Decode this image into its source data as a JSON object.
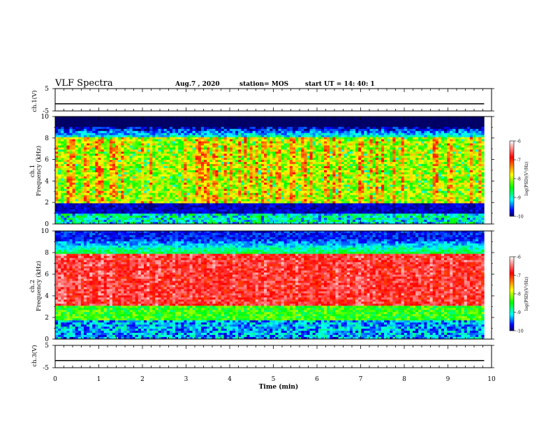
{
  "header": {
    "title": "VLF Spectra",
    "date": "Aug.7 , 2020",
    "station": "station= MOS",
    "start": "start UT = 14: 40: 1"
  },
  "chart_data": [
    {
      "type": "line",
      "name": "ch1-waveform",
      "ylabel": "ch.1(V)",
      "x": [
        0,
        9.83
      ],
      "y": [
        -1.8,
        -1.8
      ],
      "xlim": [
        0,
        10
      ],
      "ylim": [
        -5,
        5
      ],
      "yticks": [
        "5",
        "-5"
      ]
    },
    {
      "type": "heatmap",
      "name": "ch1-spectrogram",
      "ylabel": "ch.1\nFrequency (kHz)",
      "xlim": [
        0,
        10
      ],
      "ylim": [
        0,
        10
      ],
      "yticks": [
        "0",
        "2",
        "4",
        "6",
        "8",
        "10"
      ],
      "data_extent_x": [
        0,
        9.83
      ],
      "colorbar": {
        "label": "log(PSD)(V²/Hz)",
        "range": [
          -10,
          -6
        ],
        "ticks": [
          "-6",
          "-7",
          "-8",
          "-9",
          "-10"
        ]
      }
    },
    {
      "type": "heatmap",
      "name": "ch2-spectrogram",
      "ylabel": "ch.2\nFrequency (kHz)",
      "xlim": [
        0,
        10
      ],
      "ylim": [
        0,
        10
      ],
      "yticks": [
        "0",
        "2",
        "4",
        "6",
        "8",
        "10"
      ],
      "data_extent_x": [
        0,
        9.83
      ],
      "colorbar": {
        "label": "log(PSD)(V²/Hz)",
        "range": [
          -10,
          -6
        ],
        "ticks": [
          "-6",
          "-7",
          "-8",
          "-9",
          "-10"
        ]
      }
    },
    {
      "type": "line",
      "name": "ch3-waveform",
      "ylabel": "ch.3(V)",
      "x": [
        0,
        9.83
      ],
      "y": [
        -1.8,
        -1.8
      ],
      "xlim": [
        0,
        10
      ],
      "ylim": [
        -5,
        5
      ],
      "yticks": [
        "5",
        "-5"
      ]
    }
  ],
  "xaxis": {
    "label": "Time (min)",
    "ticks": [
      "0",
      "1",
      "2",
      "3",
      "4",
      "5",
      "6",
      "7",
      "8",
      "9",
      "10"
    ]
  },
  "colors": {
    "scale": [
      "#ffffff",
      "#ff0000",
      "#ffff00",
      "#00ff00",
      "#00ffff",
      "#0000ff",
      "#000066"
    ]
  }
}
